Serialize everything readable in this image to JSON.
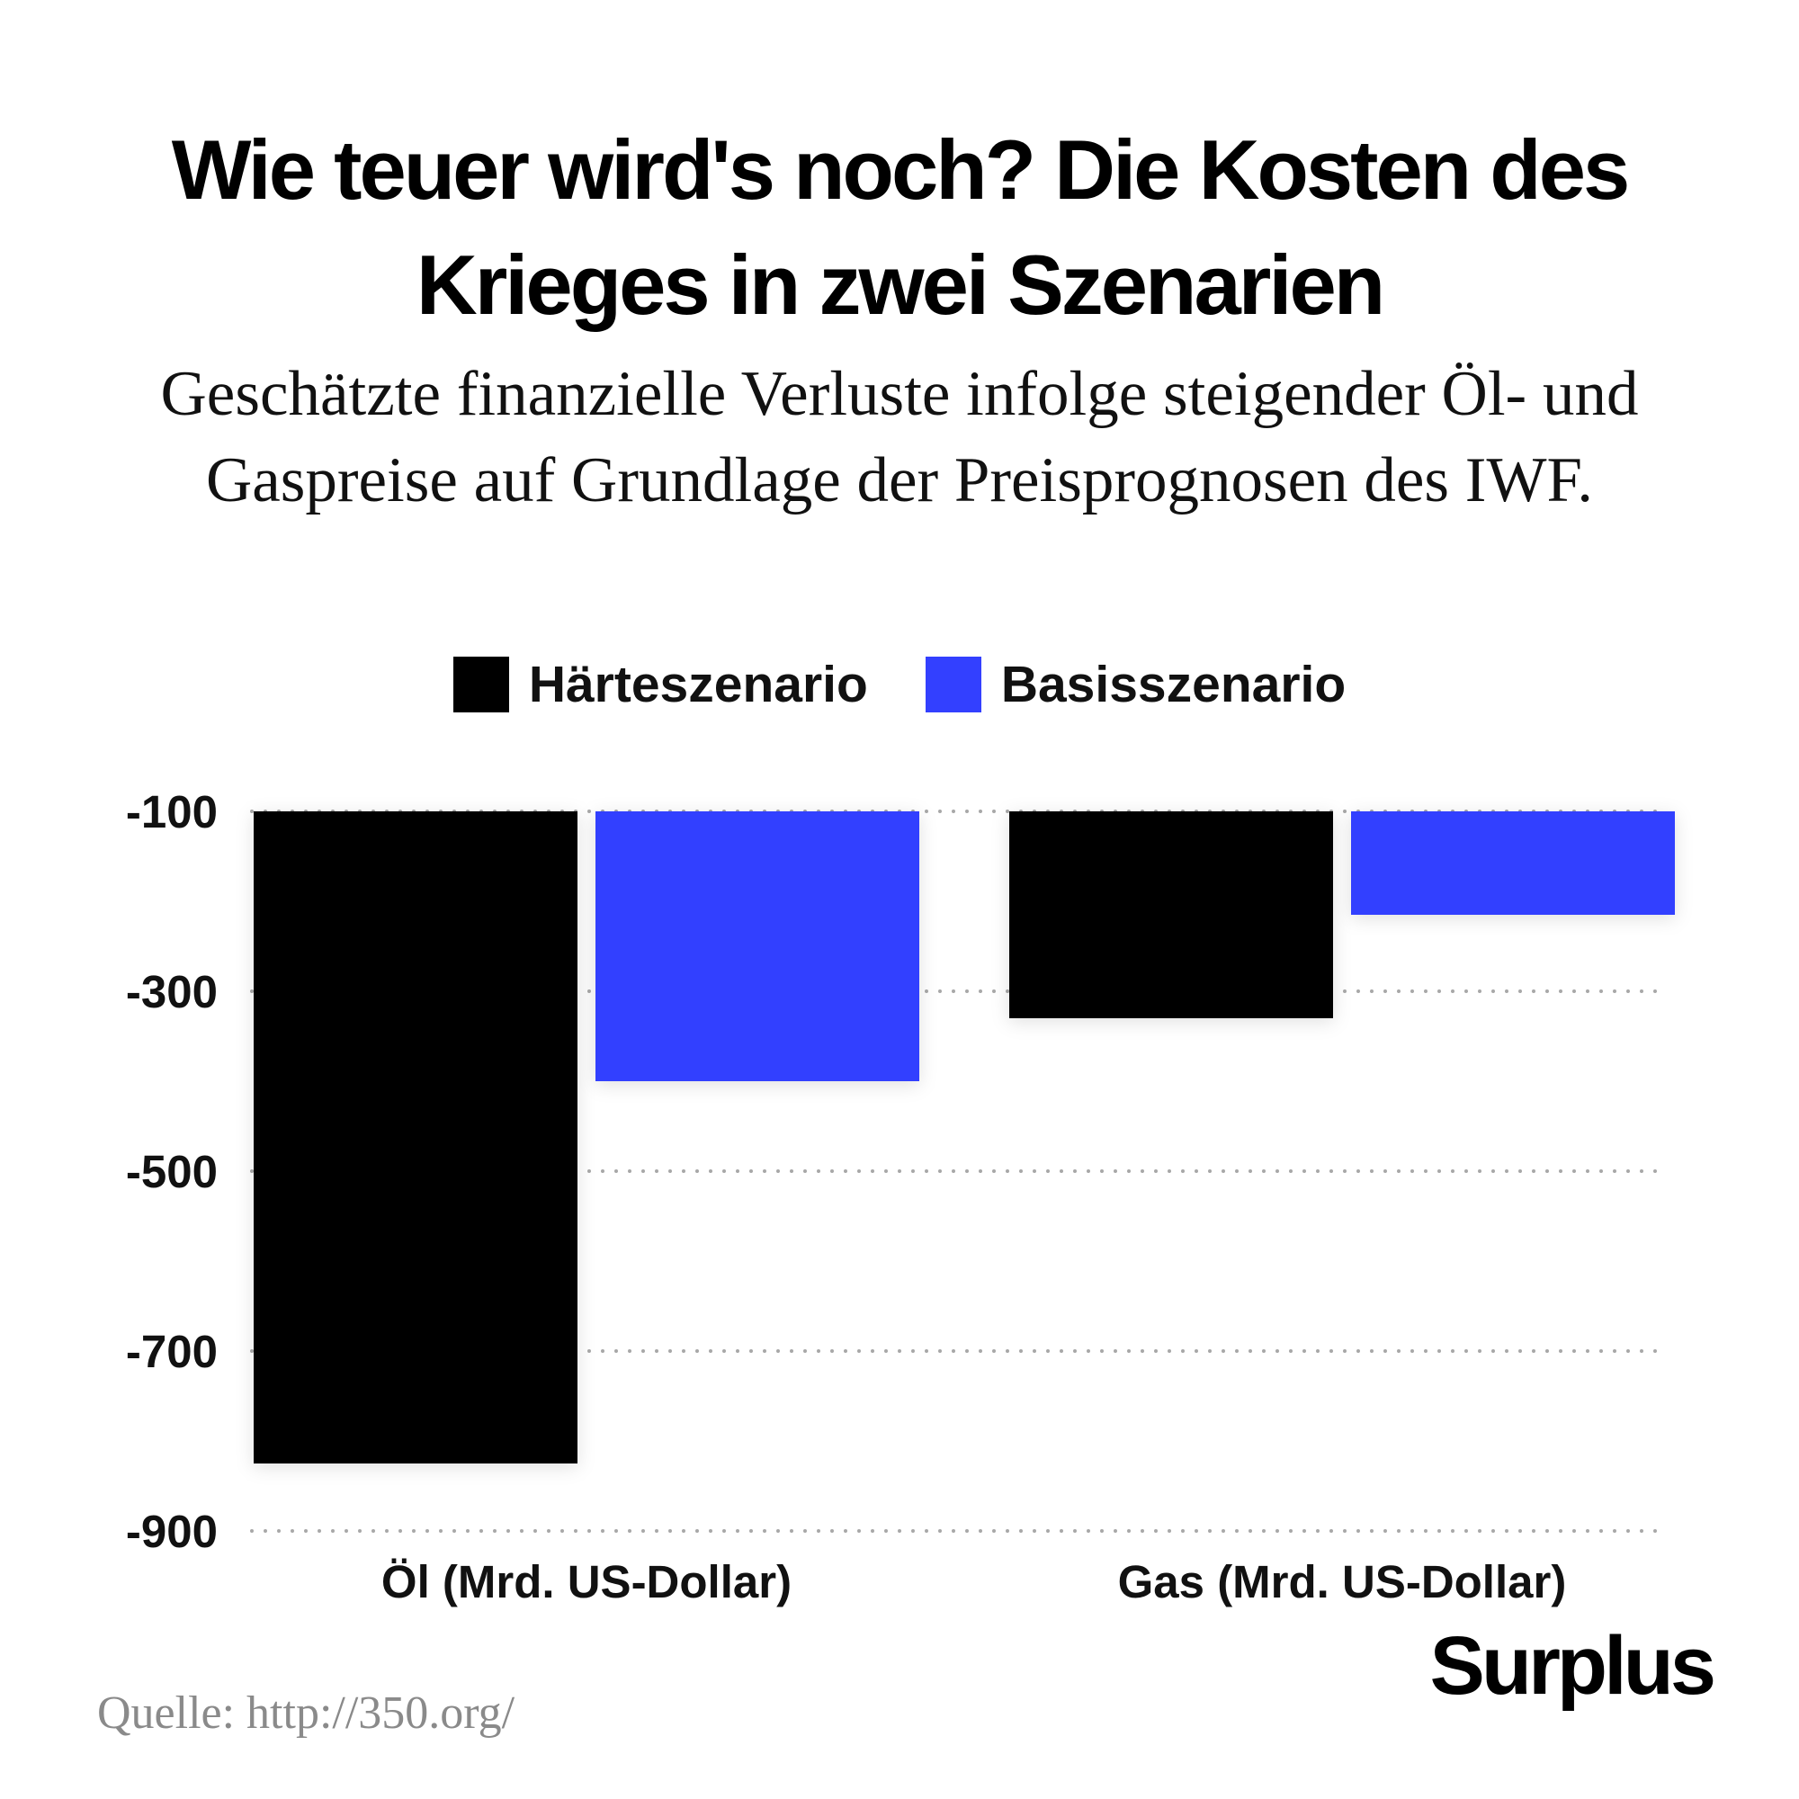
{
  "title": "Wie teuer wird's noch? Die Kosten des Krieges in zwei Szenarien",
  "subtitle": "Geschätzte finanzielle Verluste infolge steigender Öl- und Gaspreise auf Grundlage der Preisprognosen des IWF.",
  "brand": "Surplus",
  "source": "Quelle: http://350.org/",
  "chart_data": {
    "type": "bar",
    "categories": [
      "Öl (Mrd. US-Dollar)",
      "Gas (Mrd. US-Dollar)"
    ],
    "series": [
      {
        "name": "Härteszenario",
        "color": "#000000",
        "values": [
          -825,
          -330
        ]
      },
      {
        "name": "Basisszenario",
        "color": "#3340ff",
        "values": [
          -400,
          -215
        ]
      }
    ],
    "yticks": [
      -100,
      -300,
      -500,
      -700,
      -900
    ],
    "ylim": [
      -900,
      -100
    ],
    "grid": "dotted horizontal",
    "legend": "top"
  }
}
